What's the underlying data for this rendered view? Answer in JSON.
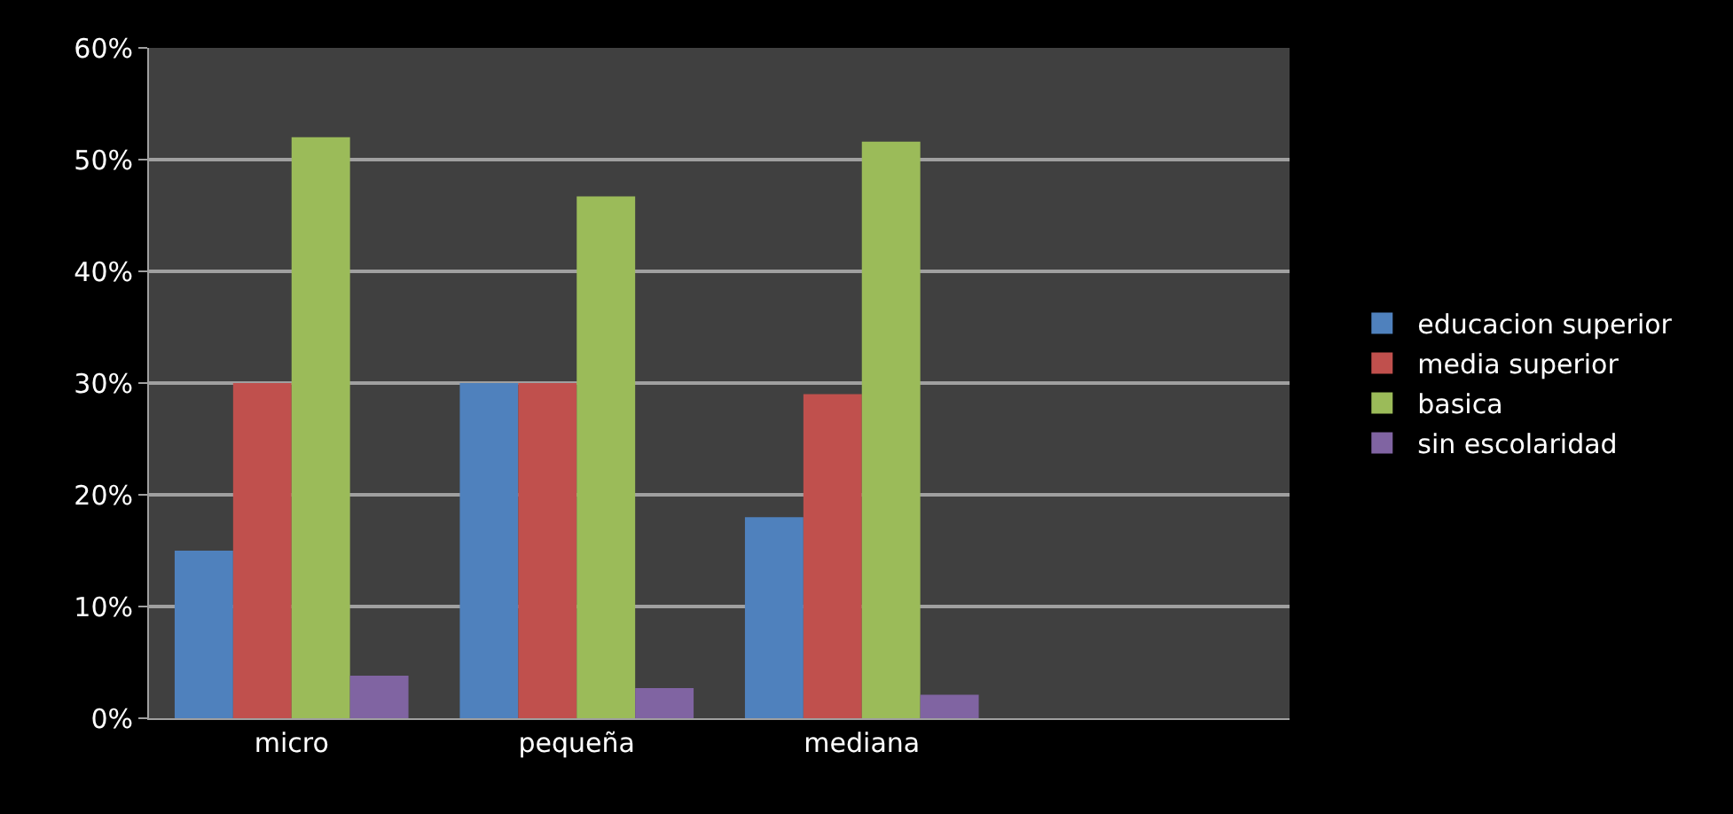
{
  "chart_data": {
    "type": "bar",
    "categories": [
      "micro",
      "pequeña",
      "mediana",
      null
    ],
    "series": [
      {
        "name": "educacion superior",
        "color": "#4f81bd",
        "values": [
          15,
          30,
          18,
          null
        ]
      },
      {
        "name": "media superior",
        "color": "#c0504d",
        "values": [
          30,
          30,
          29,
          null
        ]
      },
      {
        "name": "basica",
        "color": "#9bbb59",
        "values": [
          52,
          46.7,
          51.6,
          null
        ]
      },
      {
        "name": "sin escolaridad",
        "color": "#8064a2",
        "values": [
          3.8,
          2.7,
          2.1,
          null
        ]
      }
    ],
    "ylim": [
      0,
      60
    ],
    "yticks": [
      {
        "value": 0,
        "label": "0%"
      },
      {
        "value": 10,
        "label": "10%"
      },
      {
        "value": 20,
        "label": "20%"
      },
      {
        "value": 30,
        "label": "30%"
      },
      {
        "value": 40,
        "label": "40%"
      },
      {
        "value": 50,
        "label": "50%"
      },
      {
        "value": 60,
        "label": "60%"
      }
    ],
    "grid": "y",
    "legend": "right"
  }
}
